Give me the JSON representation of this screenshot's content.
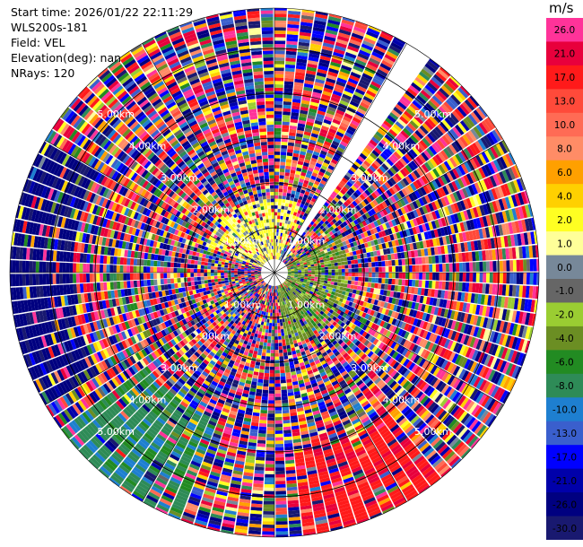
{
  "info": {
    "start_time": "Start time: 2026/01/22 22:11:29",
    "instrument": "WLS200s-181",
    "field": "Field: VEL",
    "elevation": "Elevation(deg): nan",
    "nrays": "NRays: 120"
  },
  "colorbar": {
    "unit": "m/s",
    "levels": [
      {
        "label": "26.0",
        "color": "#ff3399"
      },
      {
        "label": "21.0",
        "color": "#e8003c"
      },
      {
        "label": "17.0",
        "color": "#ff1a1a"
      },
      {
        "label": "13.0",
        "color": "#ff4a3a"
      },
      {
        "label": "10.0",
        "color": "#ff6b55"
      },
      {
        "label": "8.0",
        "color": "#ff8c66"
      },
      {
        "label": "6.0",
        "color": "#ffa000"
      },
      {
        "label": "4.0",
        "color": "#ffd000"
      },
      {
        "label": "2.0",
        "color": "#ffff22"
      },
      {
        "label": "1.0",
        "color": "#ffff99"
      },
      {
        "label": "0.0",
        "color": "#778899"
      },
      {
        "label": "-1.0",
        "color": "#666666"
      },
      {
        "label": "-2.0",
        "color": "#9acd32"
      },
      {
        "label": "-4.0",
        "color": "#6b8e23"
      },
      {
        "label": "-6.0",
        "color": "#228b22"
      },
      {
        "label": "-8.0",
        "color": "#2e8b57"
      },
      {
        "label": "-10.0",
        "color": "#1e7fd0"
      },
      {
        "label": "-13.0",
        "color": "#3a5fcd"
      },
      {
        "label": "-17.0",
        "color": "#0000ff"
      },
      {
        "label": "-21.0",
        "color": "#0000aa"
      },
      {
        "label": "-26.0",
        "color": "#000080"
      },
      {
        "label": "-30.0",
        "color": "#191970"
      }
    ]
  },
  "chart_data": {
    "type": "heatmap",
    "subtype": "polar PPI scan",
    "field": "VEL",
    "units": "m/s",
    "nrays": 120,
    "range_rings_km": [
      1.0,
      2.0,
      3.0,
      4.0,
      5.0
    ],
    "ring_labels": [
      "1.00km",
      "2.00km",
      "3.00km",
      "4.00km",
      "5.00km"
    ],
    "max_range_km": 5.9,
    "vmin": -30.0,
    "vmax": 30.0,
    "missing_sector_deg": [
      30,
      36
    ],
    "dominant_regions": [
      {
        "sector_deg": [
          290,
          20
        ],
        "range_km": [
          0,
          1.6
        ],
        "value_approx": 2.0,
        "description": "positive near field"
      },
      {
        "sector_deg": [
          60,
          170
        ],
        "range_km": [
          0,
          1.6
        ],
        "value_approx": -3.0,
        "description": "negative near field"
      },
      {
        "sector_deg": [
          140,
          175
        ],
        "range_km": [
          4.0,
          5.9
        ],
        "value_approx": 20.0,
        "description": "strong positive far field"
      },
      {
        "sector_deg": [
          200,
          235
        ],
        "range_km": [
          3.5,
          5.9
        ],
        "value_approx": -7.0,
        "description": "negative far field"
      },
      {
        "sector_deg": [
          240,
          300
        ],
        "range_km": [
          4.5,
          5.9
        ],
        "value_approx": -25.0,
        "description": "strong negative far field"
      }
    ]
  }
}
